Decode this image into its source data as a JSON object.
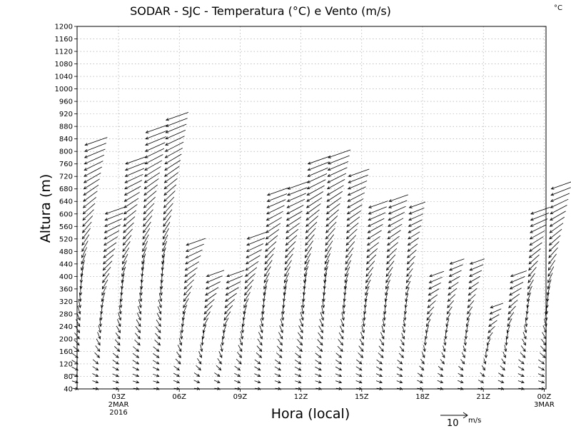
{
  "chart_data": {
    "type": "wind-profile",
    "title": "SODAR - SJC - Temperatura (°C) e Vento (m/s)",
    "corner_label": "°C",
    "xlabel": "Hora (local)",
    "ylabel": "Altura (m)",
    "ylim": [
      40,
      1200
    ],
    "y_ticks": [
      40,
      80,
      120,
      160,
      200,
      240,
      280,
      320,
      360,
      400,
      440,
      480,
      520,
      560,
      600,
      640,
      680,
      720,
      760,
      800,
      840,
      880,
      920,
      960,
      1000,
      1040,
      1080,
      1120,
      1160,
      1200
    ],
    "xlim_hours": [
      1,
      24
    ],
    "x_ticks": [
      {
        "hour": 3,
        "label": "03Z",
        "sub1": "2MAR",
        "sub2": "2016"
      },
      {
        "hour": 6,
        "label": "06Z",
        "sub1": "",
        "sub2": ""
      },
      {
        "hour": 9,
        "label": "09Z",
        "sub1": "",
        "sub2": ""
      },
      {
        "hour": 12,
        "label": "12Z",
        "sub1": "",
        "sub2": ""
      },
      {
        "hour": 15,
        "label": "15Z",
        "sub1": "",
        "sub2": ""
      },
      {
        "hour": 18,
        "label": "18Z",
        "sub1": "",
        "sub2": ""
      },
      {
        "hour": 21,
        "label": "21Z",
        "sub1": "",
        "sub2": ""
      },
      {
        "hour": 24,
        "label": "00Z",
        "sub1": "3MAR",
        "sub2": ""
      }
    ],
    "legend": {
      "value": "10",
      "unit": "m/s"
    },
    "profiles": [
      {
        "hour": 1.0,
        "top": 820,
        "surface_speed": 3,
        "top_speed": 14
      },
      {
        "hour": 2.0,
        "top": 600,
        "surface_speed": 3,
        "top_speed": 12
      },
      {
        "hour": 3.0,
        "top": 760,
        "surface_speed": 3,
        "top_speed": 13
      },
      {
        "hour": 4.0,
        "top": 860,
        "surface_speed": 3,
        "top_speed": 14
      },
      {
        "hour": 5.0,
        "top": 900,
        "surface_speed": 3,
        "top_speed": 14
      },
      {
        "hour": 6.0,
        "top": 500,
        "surface_speed": 3,
        "top_speed": 12
      },
      {
        "hour": 7.0,
        "top": 400,
        "surface_speed": 3,
        "top_speed": 11
      },
      {
        "hour": 8.0,
        "top": 400,
        "surface_speed": 3,
        "top_speed": 11
      },
      {
        "hour": 9.0,
        "top": 520,
        "surface_speed": 3,
        "top_speed": 12
      },
      {
        "hour": 10.0,
        "top": 660,
        "surface_speed": 3,
        "top_speed": 13
      },
      {
        "hour": 11.0,
        "top": 680,
        "surface_speed": 3,
        "top_speed": 13
      },
      {
        "hour": 12.0,
        "top": 760,
        "surface_speed": 3,
        "top_speed": 14
      },
      {
        "hour": 13.0,
        "top": 780,
        "surface_speed": 3,
        "top_speed": 14
      },
      {
        "hour": 14.0,
        "top": 720,
        "surface_speed": 3,
        "top_speed": 13
      },
      {
        "hour": 15.0,
        "top": 620,
        "surface_speed": 3,
        "top_speed": 12
      },
      {
        "hour": 16.0,
        "top": 640,
        "surface_speed": 3,
        "top_speed": 12
      },
      {
        "hour": 17.0,
        "top": 620,
        "surface_speed": 3,
        "top_speed": 10
      },
      {
        "hour": 18.0,
        "top": 400,
        "surface_speed": 3,
        "top_speed": 9
      },
      {
        "hour": 19.0,
        "top": 440,
        "surface_speed": 3,
        "top_speed": 9
      },
      {
        "hour": 20.0,
        "top": 440,
        "surface_speed": 3,
        "top_speed": 9
      },
      {
        "hour": 21.0,
        "top": 300,
        "surface_speed": 3,
        "top_speed": 8
      },
      {
        "hour": 22.0,
        "top": 400,
        "surface_speed": 3,
        "top_speed": 10
      },
      {
        "hour": 23.0,
        "top": 600,
        "surface_speed": 3,
        "top_speed": 12
      },
      {
        "hour": 24.0,
        "top": 680,
        "surface_speed": 3,
        "top_speed": 13
      }
    ],
    "level_step_m": 20,
    "grid": true
  }
}
